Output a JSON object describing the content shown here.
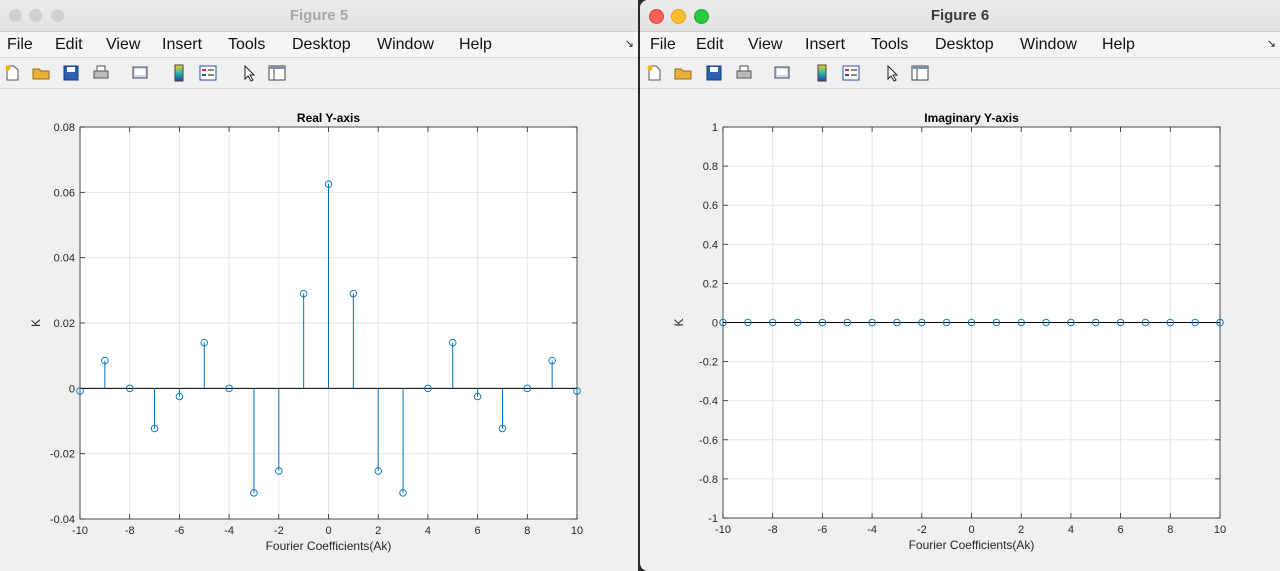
{
  "windows": [
    {
      "title": "Figure 5",
      "active": false,
      "menu": [
        "File",
        "Edit",
        "View",
        "Insert",
        "Tools",
        "Desktop",
        "Window",
        "Help"
      ],
      "toolbar_icons": [
        "new-figure-icon",
        "open-icon",
        "save-icon",
        "print-icon",
        "print-preview-icon",
        "colorbar-icon",
        "legend-icon",
        "pointer-icon",
        "property-editor-icon"
      ]
    },
    {
      "title": "Figure 6",
      "active": true,
      "menu": [
        "File",
        "Edit",
        "View",
        "Insert",
        "Tools",
        "Desktop",
        "Window",
        "Help"
      ],
      "toolbar_icons": [
        "new-figure-icon",
        "open-icon",
        "save-icon",
        "print-icon",
        "print-preview-icon",
        "colorbar-icon",
        "legend-icon",
        "pointer-icon",
        "property-editor-icon"
      ]
    }
  ],
  "chart_data": [
    {
      "type": "stem",
      "title": "Real Y-axis",
      "xlabel": "Fourier Coefficients(Ak)",
      "ylabel": "K",
      "xlim": [
        -10,
        10
      ],
      "ylim": [
        -0.04,
        0.08
      ],
      "xticks": [
        "-10",
        "-8",
        "-6",
        "-4",
        "-2",
        "0",
        "2",
        "4",
        "6",
        "8",
        "10"
      ],
      "yticks": [
        "-0.04",
        "-0.02",
        "0",
        "0.02",
        "0.04",
        "0.06",
        "0.08"
      ],
      "grid": true,
      "color": "#0072bd",
      "x": [
        -10,
        -9,
        -8,
        -7,
        -6,
        -5,
        -4,
        -3,
        -2,
        -1,
        0,
        1,
        2,
        3,
        4,
        5,
        6,
        7,
        8,
        9,
        10
      ],
      "values": [
        -0.0008,
        0.0085,
        0.0,
        -0.0123,
        -0.0025,
        0.014,
        0.0,
        -0.032,
        -0.0253,
        0.029,
        0.0625,
        0.029,
        -0.0253,
        -0.032,
        0.0,
        0.014,
        -0.0025,
        -0.0123,
        0.0,
        0.0085,
        -0.0008
      ]
    },
    {
      "type": "stem",
      "title": "Imaginary Y-axis",
      "xlabel": "Fourier Coefficients(Ak)",
      "ylabel": "K",
      "xlim": [
        -10,
        10
      ],
      "ylim": [
        -1,
        1
      ],
      "xticks": [
        "-10",
        "-8",
        "-6",
        "-4",
        "-2",
        "0",
        "2",
        "4",
        "6",
        "8",
        "10"
      ],
      "yticks": [
        "-1",
        "-0.8",
        "-0.6",
        "-0.4",
        "-0.2",
        "0",
        "0.2",
        "0.4",
        "0.6",
        "0.8",
        "1"
      ],
      "grid": true,
      "color": "#0072bd",
      "x": [
        -10,
        -9,
        -8,
        -7,
        -6,
        -5,
        -4,
        -3,
        -2,
        -1,
        0,
        1,
        2,
        3,
        4,
        5,
        6,
        7,
        8,
        9,
        10
      ],
      "values": [
        0,
        0,
        0,
        0,
        0,
        0,
        0,
        0,
        0,
        0,
        0,
        0,
        0,
        0,
        0,
        0,
        0,
        0,
        0,
        0,
        0
      ]
    }
  ]
}
